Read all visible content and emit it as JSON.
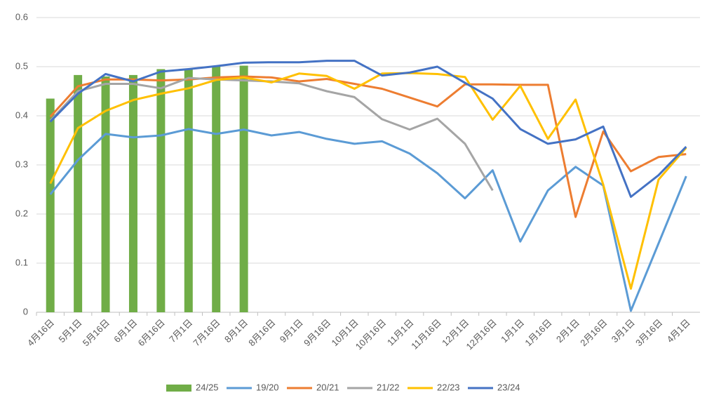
{
  "chart_data": {
    "type": "combo",
    "categories": [
      "4月16日",
      "5月1日",
      "5月16日",
      "6月1日",
      "6月16日",
      "7月1日",
      "7月16日",
      "8月1日",
      "8月16日",
      "9月1日",
      "9月16日",
      "10月1日",
      "10月16日",
      "11月1日",
      "11月16日",
      "12月1日",
      "12月16日",
      "1月1日",
      "1月16日",
      "2月1日",
      "2月16日",
      "3月1日",
      "3月16日",
      "4月1日"
    ],
    "ylim": [
      0,
      0.6
    ],
    "yticks": [
      0,
      0.1,
      0.2,
      0.3,
      0.4,
      0.5,
      0.6
    ],
    "grid": true,
    "legend": "bottom",
    "series": [
      {
        "name": "24/25",
        "type": "bar",
        "color": "#70ad47",
        "values": [
          0.435,
          0.483,
          0.48,
          0.483,
          0.495,
          0.495,
          0.5,
          0.502,
          null,
          null,
          null,
          null,
          null,
          null,
          null,
          null,
          null,
          null,
          null,
          null,
          null,
          null,
          null,
          null
        ]
      },
      {
        "name": "19/20",
        "type": "line",
        "color": "#5b9bd5",
        "values": [
          0.24,
          0.31,
          0.363,
          0.356,
          0.36,
          0.373,
          0.363,
          0.372,
          0.36,
          0.367,
          0.353,
          0.343,
          0.348,
          0.323,
          0.283,
          0.232,
          0.289,
          0.144,
          0.248,
          0.296,
          0.258,
          0.003,
          0.14,
          0.277
        ]
      },
      {
        "name": "20/21",
        "type": "line",
        "color": "#ed7d31",
        "values": [
          0.398,
          0.46,
          0.474,
          0.474,
          0.472,
          0.474,
          0.478,
          0.48,
          0.478,
          0.47,
          0.475,
          0.465,
          0.455,
          0.437,
          0.419,
          0.464,
          0.464,
          0.463,
          0.463,
          0.194,
          0.368,
          0.287,
          0.316,
          0.322
        ]
      },
      {
        "name": "21/22",
        "type": "line",
        "color": "#a5a5a5",
        "values": [
          0.39,
          0.45,
          0.465,
          0.465,
          0.456,
          0.477,
          0.474,
          0.472,
          0.47,
          0.466,
          0.45,
          0.438,
          0.393,
          0.372,
          0.394,
          0.343,
          0.248,
          null,
          null,
          null,
          null,
          null,
          null,
          null
        ]
      },
      {
        "name": "22/23",
        "type": "line",
        "color": "#ffc000",
        "values": [
          0.262,
          0.375,
          0.41,
          0.432,
          0.445,
          0.456,
          0.473,
          0.478,
          0.468,
          0.486,
          0.481,
          0.455,
          0.486,
          0.487,
          0.485,
          0.479,
          0.392,
          0.461,
          0.353,
          0.433,
          0.26,
          0.048,
          0.27,
          0.335
        ]
      },
      {
        "name": "23/24",
        "type": "line",
        "color": "#4472c4",
        "values": [
          0.388,
          0.445,
          0.485,
          0.47,
          0.49,
          0.495,
          0.501,
          0.508,
          0.509,
          0.509,
          0.512,
          0.512,
          0.482,
          0.488,
          0.5,
          0.467,
          0.435,
          0.373,
          0.343,
          0.352,
          0.378,
          0.235,
          0.279,
          0.337
        ]
      }
    ]
  }
}
